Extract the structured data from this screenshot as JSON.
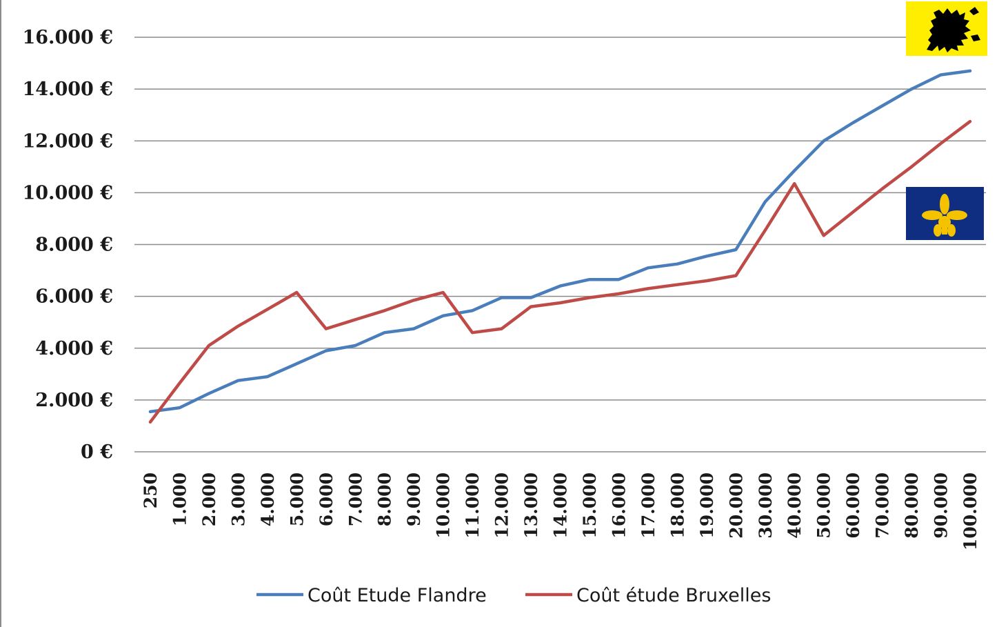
{
  "chart_data": {
    "type": "line",
    "title": "",
    "xlabel": "",
    "ylabel": "",
    "categories": [
      "250",
      "1.000",
      "2.000",
      "3.000",
      "4.000",
      "5.000",
      "6.000",
      "7.000",
      "8.000",
      "9.000",
      "10.000",
      "11.000",
      "12.000",
      "13.000",
      "14.000",
      "15.000",
      "16.000",
      "17.000",
      "18.000",
      "19.000",
      "20.000",
      "30.000",
      "40.000",
      "50.000",
      "60.000",
      "70.000",
      "80.000",
      "90.000",
      "100.000"
    ],
    "ylim": [
      0,
      16000
    ],
    "yticks": [
      0,
      2000,
      4000,
      6000,
      8000,
      10000,
      12000,
      14000,
      16000
    ],
    "ytick_labels": [
      "0 €",
      "2.000 €",
      "4.000 €",
      "6.000 €",
      "8.000 €",
      "10.000 €",
      "12.000 €",
      "14.000 €",
      "16.000 €"
    ],
    "grid": true,
    "legend_position": "bottom",
    "series": [
      {
        "name": "Coût Etude Flandre",
        "color": "#4a7ebb",
        "values": [
          1550,
          1700,
          2250,
          2750,
          2900,
          3400,
          3900,
          4100,
          4600,
          4750,
          5250,
          5450,
          5950,
          5950,
          6400,
          6650,
          6650,
          7100,
          7250,
          7550,
          7800,
          9650,
          10850,
          12000,
          12700,
          13350,
          14000,
          14550,
          14700
        ]
      },
      {
        "name": "Coût étude Bruxelles",
        "color": "#be4b48",
        "values": [
          1150,
          2650,
          4100,
          4850,
          5500,
          6150,
          4750,
          5100,
          5450,
          5850,
          6150,
          4600,
          4750,
          5600,
          5750,
          5950,
          6100,
          6300,
          6450,
          6600,
          6800,
          8550,
          10350,
          8350,
          9250,
          10150,
          11000,
          11900,
          12750
        ]
      }
    ]
  },
  "flags": {
    "flanders": {
      "icon": "flanders-lion-flag-icon",
      "bg": "#ffee00",
      "fg": "#000000"
    },
    "brussels": {
      "icon": "brussels-iris-flag-icon",
      "bg": "#0f2e82",
      "fg": "#f5c200"
    }
  },
  "colors": {
    "gridline": "#8c8c8c",
    "axis": "#8c8c8c"
  }
}
